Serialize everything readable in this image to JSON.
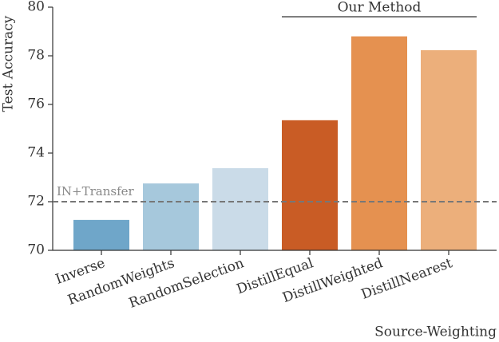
{
  "chart_data": {
    "type": "bar",
    "x_label": "Source-Weighting",
    "y_label": "Test Accuracy",
    "categories": [
      "Inverse",
      "RandomWeights",
      "RandomSelection",
      "DistillEqual",
      "DistillWeighted",
      "DistillNearest"
    ],
    "values": [
      71.25,
      72.75,
      73.38,
      75.35,
      78.8,
      78.23
    ],
    "colors": [
      "#6fa6c9",
      "#a6c8dc",
      "#cadbe8",
      "#c95c25",
      "#e59150",
      "#ecaf7b"
    ],
    "ylim": [
      70,
      80
    ],
    "yticks": [
      70,
      72,
      74,
      76,
      78,
      80
    ],
    "reference_line": {
      "value": 72.0,
      "label": "IN+Transfer"
    },
    "group_annotation": "Our Method"
  }
}
